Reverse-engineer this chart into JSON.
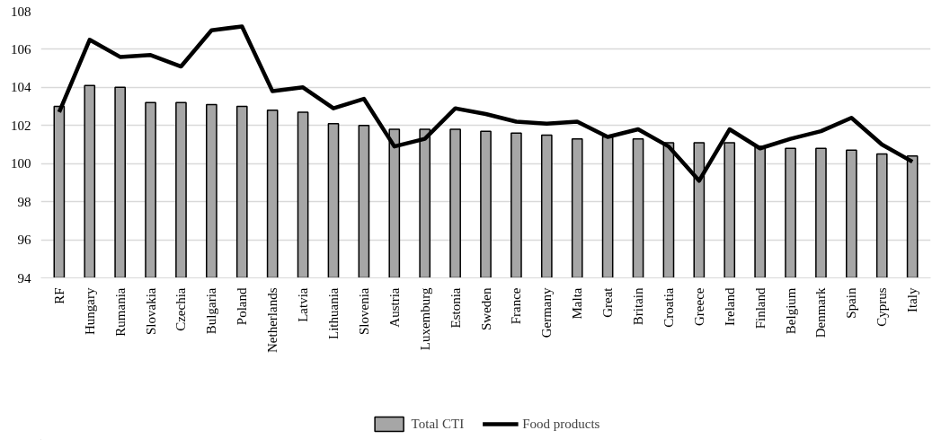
{
  "chart_data": {
    "type": "bar",
    "categories": [
      "RF",
      "Hungary",
      "Rumania",
      "Slovakia",
      "Czechia",
      "Bulgaria",
      "Poland",
      "Netherlands",
      "Latvia",
      "Lithuania",
      "Slovenia",
      "Austria",
      "Luxemburg",
      "Estonia",
      "Sweden",
      "France",
      "Germany",
      "Malta",
      "Great",
      "Britain",
      "Croatia",
      "Greece",
      "Ireland",
      "Finland",
      "Belgium",
      "Denmark",
      "Spain",
      "Cyprus",
      "Italy"
    ],
    "series": [
      {
        "name": "Total CTI",
        "color": "#a6a6a6",
        "values": [
          103.0,
          104.1,
          104.0,
          103.2,
          103.2,
          103.1,
          103.0,
          102.8,
          102.7,
          102.1,
          102.0,
          101.8,
          101.8,
          101.8,
          101.7,
          101.6,
          101.5,
          101.3,
          101.4,
          101.3,
          101.1,
          101.1,
          101.1,
          100.9,
          100.8,
          100.8,
          100.7,
          100.5,
          100.4
        ]
      },
      {
        "name": "Food products",
        "type": "line",
        "color": "#000000",
        "values": [
          102.7,
          106.5,
          105.6,
          105.7,
          105.1,
          107.0,
          107.2,
          103.8,
          104.0,
          102.9,
          103.4,
          100.9,
          101.3,
          102.9,
          102.6,
          102.2,
          102.1,
          102.2,
          101.4,
          101.8,
          100.9,
          99.1,
          101.8,
          100.8,
          101.3,
          101.7,
          102.4,
          101.0,
          100.1
        ]
      }
    ],
    "ylim": [
      94,
      108
    ],
    "yticks": [
      94,
      96,
      98,
      100,
      102,
      104,
      106,
      108
    ],
    "grid": "y",
    "legend": "bottom",
    "line_style": "solid",
    "marker": "none"
  }
}
